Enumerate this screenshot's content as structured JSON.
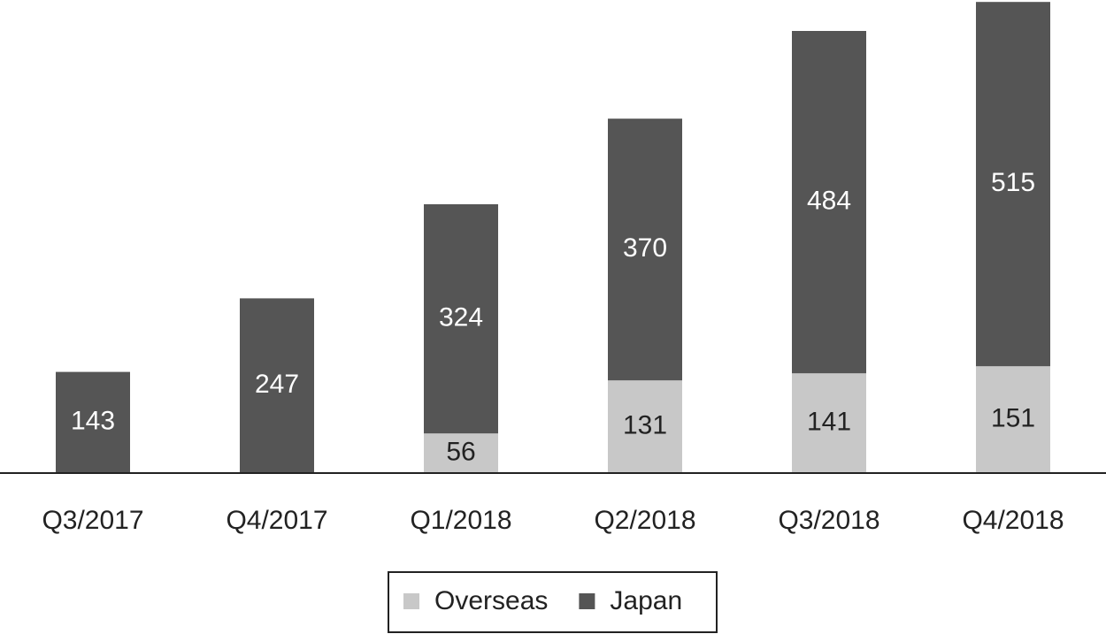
{
  "chart_data": {
    "type": "stacked-bar",
    "categories": [
      "Q3/2017",
      "Q4/2017",
      "Q1/2018",
      "Q2/2018",
      "Q3/2018",
      "Q4/2018"
    ],
    "series": [
      {
        "name": "Overseas",
        "color": "#c8c8c8",
        "label_color": "#222222",
        "values": [
          null,
          null,
          56,
          131,
          141,
          151
        ]
      },
      {
        "name": "Japan",
        "color": "#555555",
        "label_color": "#ffffff",
        "values": [
          143,
          247,
          324,
          370,
          484,
          515
        ]
      }
    ],
    "legend": "bottom"
  }
}
